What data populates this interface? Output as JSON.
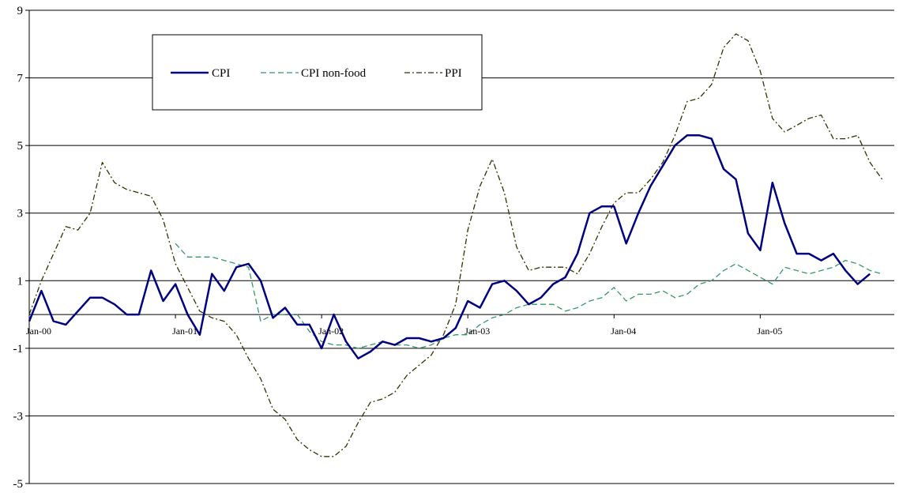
{
  "chart_data": {
    "type": "line",
    "title": "",
    "xlabel": "",
    "ylabel": "",
    "ylim": [
      -5,
      9
    ],
    "yticks": [
      -5,
      -3,
      -1,
      1,
      3,
      5,
      7,
      9
    ],
    "grid": "horizontal",
    "legend_position": "top-left",
    "x_tick_labels": [
      {
        "label": "Jan-00",
        "month": 0
      },
      {
        "label": "Jan-01",
        "month": 12
      },
      {
        "label": "Jan-02",
        "month": 24
      },
      {
        "label": "Jan-03",
        "month": 36
      },
      {
        "label": "Jan-04",
        "month": 48
      },
      {
        "label": "Jan-05",
        "month": 60
      }
    ],
    "x_months_total": 72,
    "series": [
      {
        "name": "CPI",
        "color": "#000080",
        "style": "solid",
        "start_month": 0,
        "values": [
          -0.2,
          0.7,
          -0.2,
          -0.3,
          0.1,
          0.5,
          0.5,
          0.3,
          0.0,
          0.0,
          1.3,
          0.4,
          0.9,
          0.0,
          -0.6,
          1.2,
          0.7,
          1.4,
          1.5,
          1.0,
          -0.1,
          0.2,
          -0.3,
          -0.3,
          -1.0,
          0.0,
          -0.8,
          -1.3,
          -1.1,
          -0.8,
          -0.9,
          -0.7,
          -0.7,
          -0.8,
          -0.7,
          -0.4,
          0.4,
          0.2,
          0.9,
          1.0,
          0.7,
          0.3,
          0.5,
          0.9,
          1.1,
          1.8,
          3.0,
          3.2,
          3.2,
          2.1,
          3.0,
          3.8,
          4.4,
          5.0,
          5.3,
          5.3,
          5.2,
          4.3,
          4.0,
          2.4,
          1.9,
          3.9,
          2.7,
          1.8,
          1.8,
          1.6,
          1.8,
          1.3,
          0.9,
          1.2
        ]
      },
      {
        "name": "CPI non-food",
        "color": "#339966",
        "style": "dashed",
        "start_month": 12,
        "values": [
          2.1,
          1.7,
          1.7,
          1.7,
          1.6,
          1.5,
          1.4,
          -0.2,
          0.0,
          0.0,
          0.0,
          -0.5,
          -0.8,
          -0.9,
          -0.9,
          -1.0,
          -0.9,
          -0.8,
          -0.9,
          -0.9,
          -1.0,
          -0.9,
          -0.7,
          -0.6,
          -0.6,
          -0.3,
          -0.1,
          0.0,
          0.2,
          0.3,
          0.3,
          0.3,
          0.1,
          0.2,
          0.4,
          0.5,
          0.8,
          0.4,
          0.6,
          0.6,
          0.7,
          0.5,
          0.6,
          0.9,
          1.0,
          1.3,
          1.5,
          1.3,
          1.1,
          0.9,
          1.4,
          1.3,
          1.2,
          1.3,
          1.4,
          1.6,
          1.5,
          1.3,
          1.2
        ]
      },
      {
        "name": "PPI",
        "color": "#333300",
        "style": "dash-dot",
        "start_month": 0,
        "values": [
          0.0,
          1.0,
          1.8,
          2.6,
          2.5,
          3.0,
          4.5,
          3.9,
          3.7,
          3.6,
          3.5,
          2.8,
          1.5,
          0.8,
          0.1,
          -0.1,
          -0.2,
          -0.6,
          -1.3,
          -1.9,
          -2.8,
          -3.1,
          -3.7,
          -4.0,
          -4.2,
          -4.2,
          -3.9,
          -3.2,
          -2.6,
          -2.5,
          -2.3,
          -1.8,
          -1.5,
          -1.2,
          -0.6,
          0.3,
          2.5,
          3.8,
          4.6,
          3.6,
          2.0,
          1.3,
          1.4,
          1.4,
          1.4,
          1.2,
          1.8,
          2.6,
          3.3,
          3.6,
          3.6,
          4.0,
          4.5,
          5.3,
          6.3,
          6.4,
          6.8,
          7.9,
          8.3,
          8.1,
          7.2,
          5.8,
          5.4,
          5.6,
          5.8,
          5.9,
          5.2,
          5.2,
          5.3,
          4.5,
          4.0
        ]
      }
    ]
  }
}
